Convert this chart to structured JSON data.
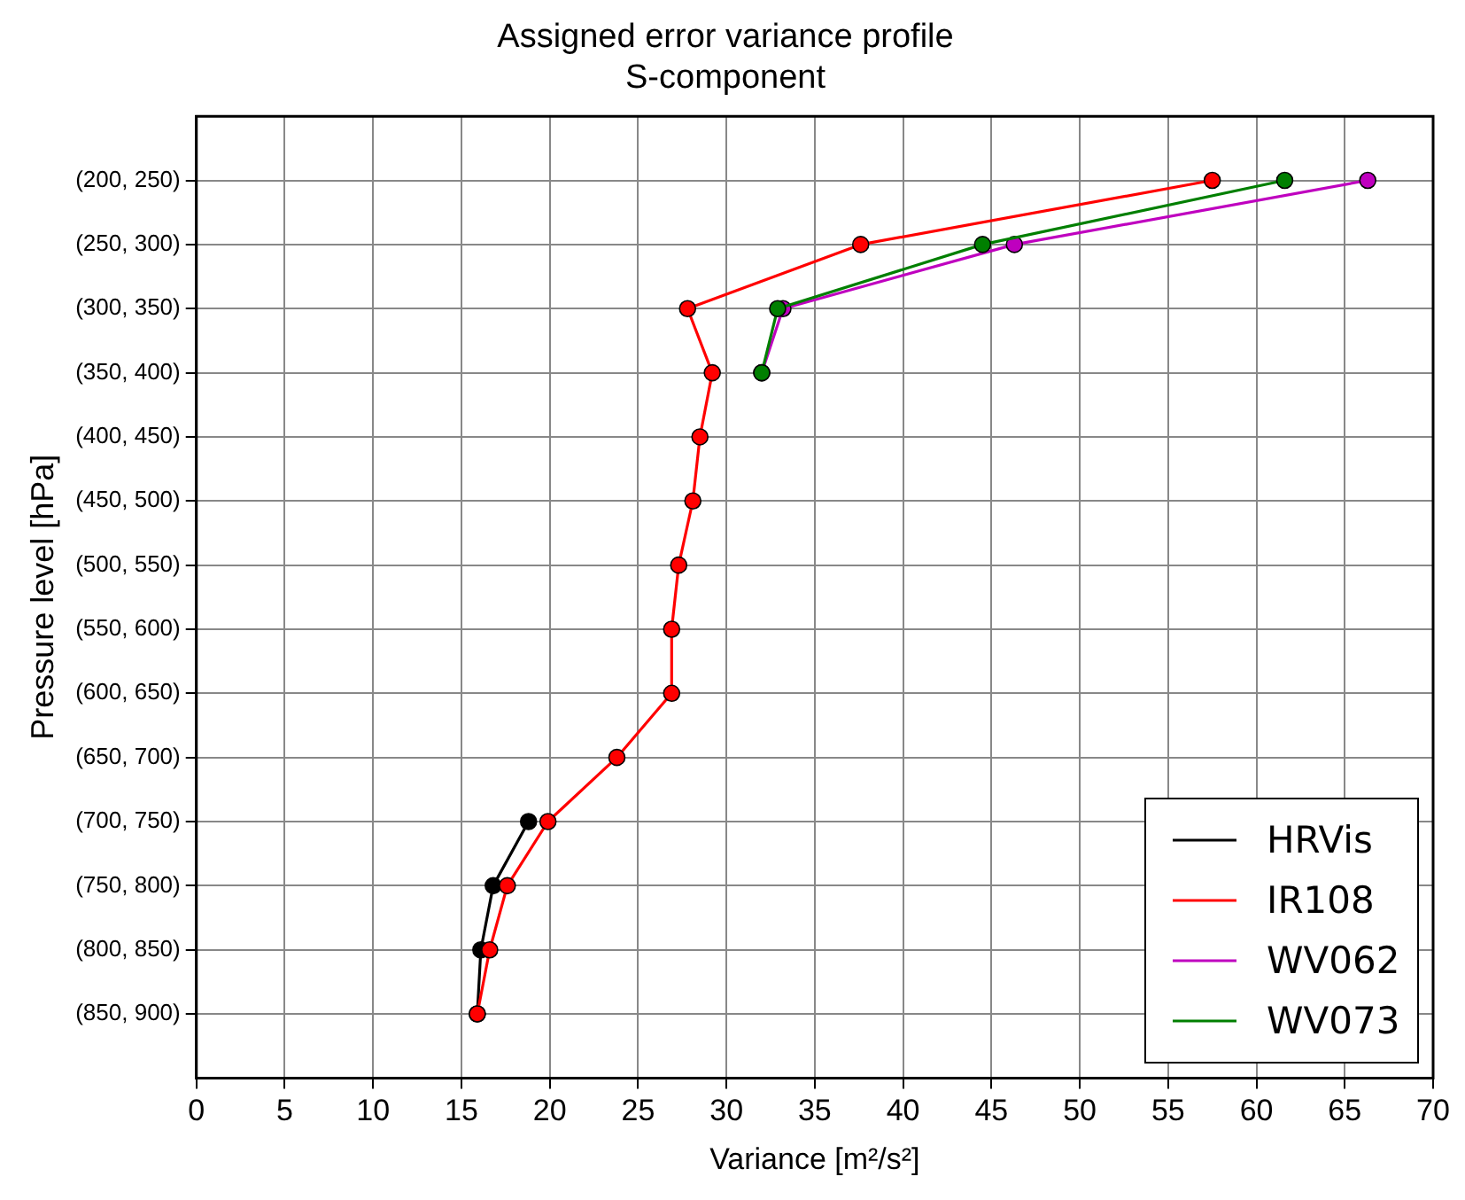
{
  "chart_data": {
    "type": "line",
    "orientation": "horizontal",
    "title": "Assigned error variance profile",
    "subtitle": "S-component",
    "xlabel": "Variance [m²/s²]",
    "ylabel": "Pressure level [hPa]",
    "categories": [
      "(200, 250)",
      "(250, 300)",
      "(300, 350)",
      "(350, 400)",
      "(400, 450)",
      "(450, 500)",
      "(500, 550)",
      "(550, 600)",
      "(600, 650)",
      "(650, 700)",
      "(700, 750)",
      "(750, 800)",
      "(800, 850)",
      "(850, 900)"
    ],
    "xlim": [
      0,
      70
    ],
    "xticks": [
      0,
      5,
      10,
      15,
      20,
      25,
      30,
      35,
      40,
      45,
      50,
      55,
      60,
      65,
      70
    ],
    "series": [
      {
        "name": "HRVis",
        "color": "#000000",
        "values": [
          null,
          null,
          null,
          null,
          null,
          null,
          null,
          null,
          null,
          null,
          18.8,
          16.8,
          16.1,
          15.9
        ]
      },
      {
        "name": "IR108",
        "color": "#ff0000",
        "values": [
          57.5,
          37.6,
          27.8,
          29.2,
          28.5,
          28.1,
          27.3,
          26.9,
          26.9,
          23.8,
          19.9,
          17.6,
          16.6,
          15.9
        ]
      },
      {
        "name": "WV062",
        "color": "#bf00bf",
        "values": [
          66.3,
          46.3,
          33.2,
          32.0,
          null,
          null,
          null,
          null,
          null,
          null,
          null,
          null,
          null,
          null
        ]
      },
      {
        "name": "WV073",
        "color": "#007f00",
        "values": [
          61.6,
          44.5,
          32.9,
          32.0,
          null,
          null,
          null,
          null,
          null,
          null,
          null,
          null,
          null,
          null
        ]
      }
    ],
    "grid": true,
    "legend": "bottom right",
    "marker": "circle",
    "line_style": "solid"
  }
}
